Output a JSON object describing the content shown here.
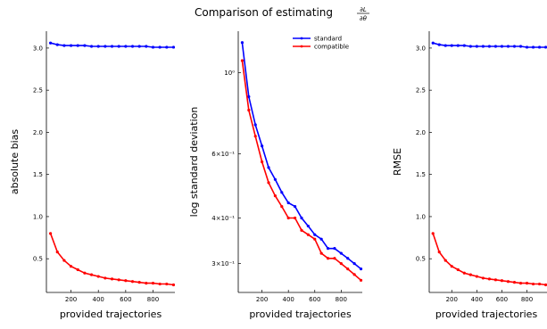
{
  "title": {
    "main": "Comparison of estimating ",
    "frac_num": "∂L",
    "frac_den": "∂θ"
  },
  "chart_data": [
    {
      "type": "line",
      "xlabel": "provided trajectories",
      "ylabel": "absolute bias",
      "xlim": [
        20,
        960
      ],
      "ylim": [
        0.1,
        3.2
      ],
      "yscale": "linear",
      "xticks": [
        200,
        400,
        600,
        800
      ],
      "yticks": [
        0.5,
        1.0,
        1.5,
        2.0,
        2.5,
        3.0
      ],
      "ytick_labels": [
        "0.5",
        "1.0",
        "1.5",
        "2.0",
        "2.5",
        "3.0"
      ],
      "grid": false,
      "legend": null,
      "x": [
        50,
        100,
        150,
        200,
        250,
        300,
        350,
        400,
        450,
        500,
        550,
        600,
        650,
        700,
        750,
        800,
        850,
        900,
        950
      ],
      "series": [
        {
          "name": "standard",
          "color": "#0000ff",
          "values": [
            3.06,
            3.04,
            3.03,
            3.03,
            3.03,
            3.03,
            3.02,
            3.02,
            3.02,
            3.02,
            3.02,
            3.02,
            3.02,
            3.02,
            3.02,
            3.01,
            3.01,
            3.01,
            3.01
          ]
        },
        {
          "name": "compatible",
          "color": "#ff0000",
          "values": [
            0.8,
            0.58,
            0.48,
            0.41,
            0.37,
            0.33,
            0.31,
            0.29,
            0.27,
            0.26,
            0.25,
            0.24,
            0.23,
            0.22,
            0.21,
            0.21,
            0.2,
            0.2,
            0.19
          ]
        }
      ]
    },
    {
      "type": "line",
      "xlabel": "provided trajectories",
      "ylabel": "log standard deviation",
      "xlim": [
        20,
        960
      ],
      "ylim": [
        0.25,
        1.3
      ],
      "yscale": "log",
      "xticks": [
        200,
        400,
        600,
        800
      ],
      "yticks": [
        0.3,
        0.4,
        0.6,
        1.0
      ],
      "ytick_labels": [
        "3×10⁻¹",
        "4×10⁻¹",
        "6×10⁻¹",
        "10⁰"
      ],
      "grid": false,
      "legend": "top-right",
      "x": [
        50,
        100,
        150,
        200,
        250,
        300,
        350,
        400,
        450,
        500,
        550,
        600,
        650,
        700,
        750,
        800,
        850,
        900,
        950
      ],
      "series": [
        {
          "name": "standard",
          "color": "#0000ff",
          "values": [
            1.21,
            0.86,
            0.72,
            0.63,
            0.55,
            0.51,
            0.47,
            0.44,
            0.43,
            0.4,
            0.38,
            0.36,
            0.35,
            0.33,
            0.33,
            0.32,
            0.31,
            0.3,
            0.29
          ]
        },
        {
          "name": "compatible",
          "color": "#ff0000",
          "values": [
            1.08,
            0.79,
            0.67,
            0.57,
            0.5,
            0.46,
            0.43,
            0.4,
            0.4,
            0.37,
            0.36,
            0.35,
            0.32,
            0.31,
            0.31,
            0.3,
            0.29,
            0.28,
            0.27
          ]
        }
      ]
    },
    {
      "type": "line",
      "xlabel": "provided trajectories",
      "ylabel": "RMSE",
      "xlim": [
        20,
        960
      ],
      "ylim": [
        0.1,
        3.2
      ],
      "yscale": "linear",
      "xticks": [
        200,
        400,
        600,
        800
      ],
      "yticks": [
        0.5,
        1.0,
        1.5,
        2.0,
        2.5,
        3.0
      ],
      "ytick_labels": [
        "0.5",
        "1.0",
        "1.5",
        "2.0",
        "2.5",
        "3.0"
      ],
      "grid": false,
      "legend": null,
      "x": [
        50,
        100,
        150,
        200,
        250,
        300,
        350,
        400,
        450,
        500,
        550,
        600,
        650,
        700,
        750,
        800,
        850,
        900,
        950
      ],
      "series": [
        {
          "name": "standard",
          "color": "#0000ff",
          "values": [
            3.06,
            3.04,
            3.03,
            3.03,
            3.03,
            3.03,
            3.02,
            3.02,
            3.02,
            3.02,
            3.02,
            3.02,
            3.02,
            3.02,
            3.02,
            3.01,
            3.01,
            3.01,
            3.01
          ]
        },
        {
          "name": "compatible",
          "color": "#ff0000",
          "values": [
            0.8,
            0.58,
            0.48,
            0.41,
            0.37,
            0.33,
            0.31,
            0.29,
            0.27,
            0.26,
            0.25,
            0.24,
            0.23,
            0.22,
            0.21,
            0.21,
            0.2,
            0.2,
            0.19
          ]
        }
      ]
    }
  ]
}
